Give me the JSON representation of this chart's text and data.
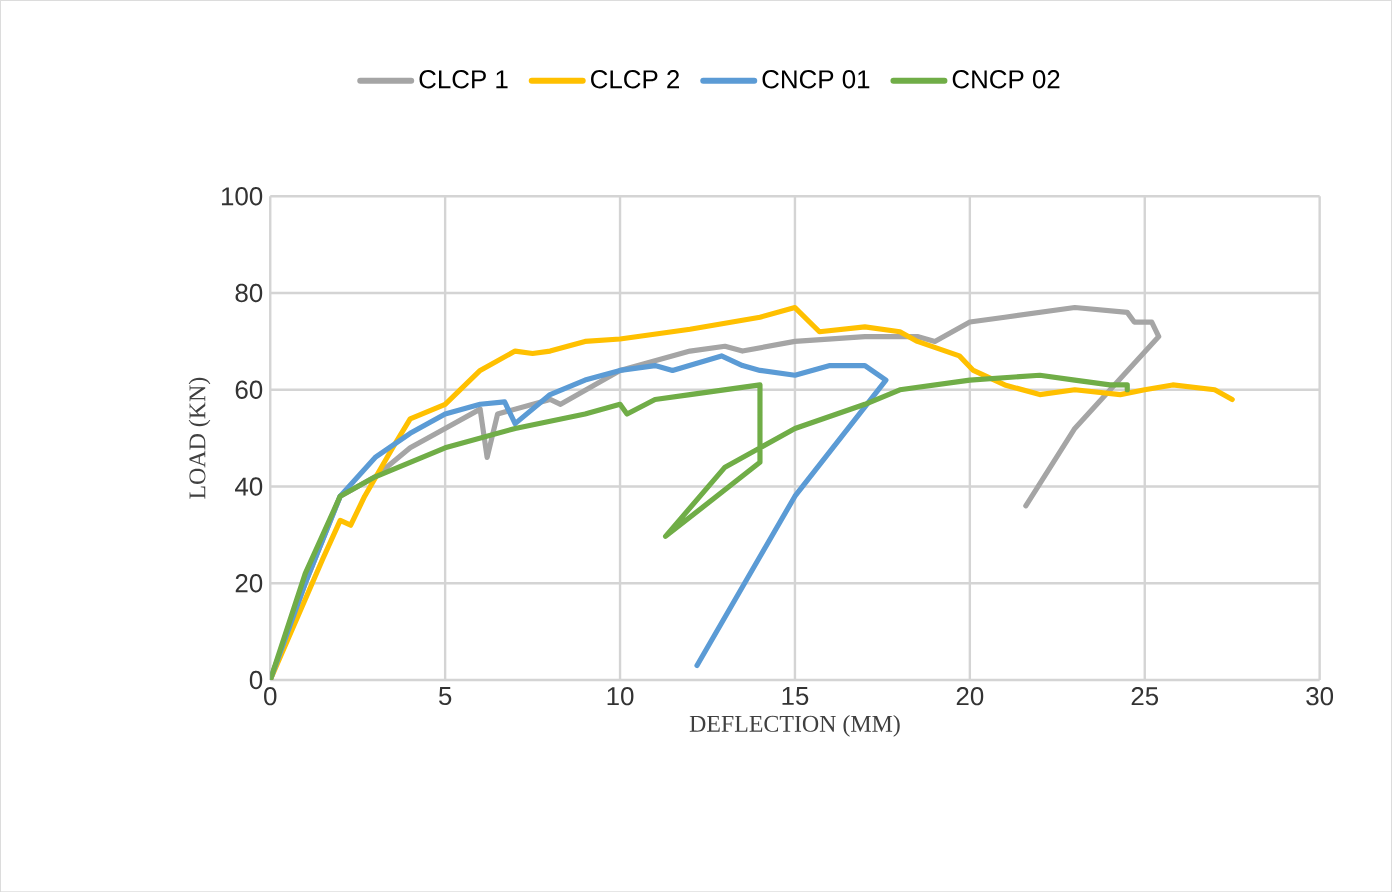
{
  "chart_data": {
    "type": "line",
    "xlabel": "DEFLECTION (MM)",
    "ylabel": "LOAD (KN)",
    "xlim": [
      0,
      30
    ],
    "xticks": [
      0,
      5,
      10,
      15,
      20,
      25,
      30
    ],
    "ylim": [
      0,
      100
    ],
    "yticks": [
      0,
      20,
      40,
      60,
      80,
      100
    ],
    "grid": true,
    "legend": "top",
    "marker": "none",
    "line_style": "solid",
    "series": [
      {
        "name": "CLCP 1",
        "color": "#a5a5a5",
        "x": [
          0,
          1,
          2,
          3,
          4,
          5,
          6,
          6.2,
          6.5,
          8,
          8.3,
          10,
          12,
          13,
          13.5,
          15,
          17,
          18.5,
          19,
          20,
          21,
          23,
          24.5,
          24.7,
          25.2,
          25.4,
          23,
          21.6
        ],
        "values": [
          0,
          20,
          38,
          42,
          48,
          52,
          56,
          46,
          55,
          58,
          57,
          64,
          68,
          69,
          68,
          70,
          71,
          71,
          70,
          74,
          75,
          77,
          76,
          74,
          74,
          71,
          52,
          36
        ]
      },
      {
        "name": "CLCP 2",
        "color": "#ffc000",
        "x": [
          0,
          1.5,
          2,
          2.3,
          2.7,
          3.5,
          4,
          5,
          6,
          7,
          7.5,
          8,
          9,
          10,
          12,
          14,
          15,
          15.7,
          17,
          18,
          18.5,
          19.7,
          20.1,
          21,
          22,
          23,
          24.3,
          25,
          25.8,
          27,
          27.5
        ],
        "values": [
          0,
          25,
          33,
          32,
          38,
          48,
          54,
          57,
          64,
          68,
          67.5,
          68,
          70,
          70.5,
          72.5,
          75,
          77,
          72,
          73,
          72,
          70,
          67,
          64,
          61,
          59,
          60,
          59,
          60,
          61,
          60,
          58
        ]
      },
      {
        "name": "CNCP 01",
        "color": "#5b9bd5",
        "x": [
          0,
          1,
          2,
          3,
          4,
          5,
          6,
          6.7,
          7,
          8,
          9,
          10,
          11,
          11.5,
          12.9,
          13.5,
          14,
          15,
          16,
          17,
          17.6,
          15,
          12.2
        ],
        "values": [
          0,
          20,
          38,
          46,
          51,
          55,
          57,
          57.5,
          53,
          59,
          62,
          64,
          65,
          64,
          67,
          65,
          64,
          63,
          65,
          65,
          62,
          38,
          3
        ]
      },
      {
        "name": "CNCP 02",
        "color": "#70ad47",
        "x": [
          0,
          1,
          2,
          3,
          4,
          5,
          7,
          9,
          10,
          10.2,
          11,
          12,
          14,
          14,
          11.3,
          13,
          15,
          17,
          18,
          20,
          22,
          23,
          24,
          24.5,
          24.5
        ],
        "values": [
          0,
          22,
          38,
          42,
          45,
          48,
          52,
          55,
          57,
          55,
          58,
          59,
          61,
          45,
          29.7,
          44,
          52,
          57,
          60,
          62,
          63,
          62,
          61,
          61,
          60
        ]
      }
    ]
  }
}
